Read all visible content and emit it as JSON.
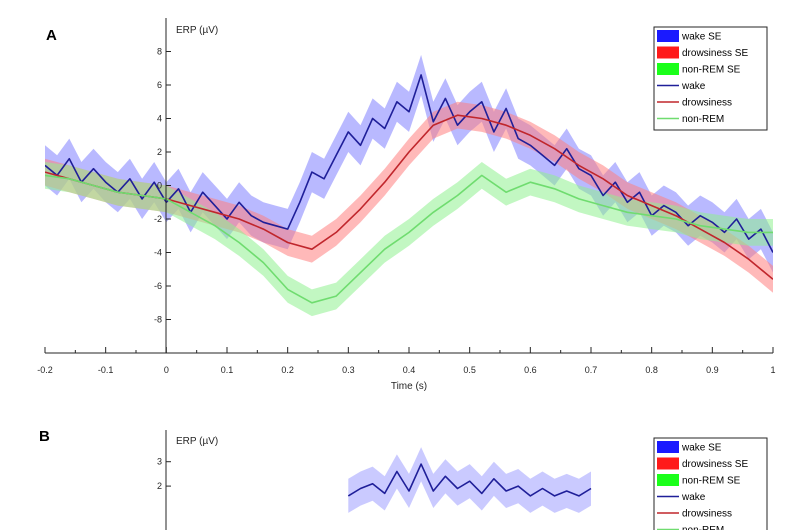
{
  "chart_data": [
    {
      "panel": "A",
      "type": "line",
      "ylabel": "ERP (µV)",
      "xlabel": "Time (s)",
      "xlim": [
        -0.2,
        1.0
      ],
      "ylim": [
        -10,
        10
      ],
      "x_ticks": [
        -0.2,
        -0.1,
        0,
        0.1,
        0.2,
        0.3,
        0.4,
        0.5,
        0.6,
        0.7,
        0.8,
        0.9,
        1
      ],
      "x_tick_labels": [
        "-0.2",
        "-0.1",
        "0",
        "0.1",
        "0.2",
        "0.3",
        "0.4",
        "0.5",
        "0.6",
        "0.7",
        "0.8",
        "0.9",
        "1"
      ],
      "y_ticks": [
        -8,
        -6,
        -4,
        -2,
        0,
        2,
        4,
        6,
        8
      ],
      "y_tick_labels": [
        "-8",
        "-6",
        "-4",
        "-2",
        "0",
        "2",
        "4",
        "6",
        "8"
      ],
      "legend_position": "top-right",
      "legend": [
        {
          "label": "wake SE",
          "kind": "patch",
          "color": "#1a1aff"
        },
        {
          "label": "drowsiness SE",
          "kind": "patch",
          "color": "#ff1a1a"
        },
        {
          "label": "non-REM SE",
          "kind": "patch",
          "color": "#1aff1a"
        },
        {
          "label": "wake",
          "kind": "line",
          "color": "#1f1f99"
        },
        {
          "label": "drowsiness",
          "kind": "line",
          "color": "#c0262c"
        },
        {
          "label": "non-REM",
          "kind": "line",
          "color": "#6fdc6f"
        }
      ],
      "series": [
        {
          "name": "wake",
          "color": "#1f1f99",
          "band_color": "#7f7fff",
          "se": 1.2,
          "x": [
            -0.2,
            -0.18,
            -0.16,
            -0.14,
            -0.12,
            -0.1,
            -0.08,
            -0.06,
            -0.04,
            -0.02,
            0,
            0.02,
            0.04,
            0.06,
            0.08,
            0.1,
            0.12,
            0.14,
            0.16,
            0.18,
            0.2,
            0.22,
            0.24,
            0.26,
            0.28,
            0.3,
            0.32,
            0.34,
            0.36,
            0.38,
            0.4,
            0.42,
            0.44,
            0.46,
            0.48,
            0.5,
            0.52,
            0.54,
            0.56,
            0.58,
            0.6,
            0.62,
            0.64,
            0.66,
            0.68,
            0.7,
            0.72,
            0.74,
            0.76,
            0.78,
            0.8,
            0.82,
            0.84,
            0.86,
            0.88,
            0.9,
            0.92,
            0.94,
            0.96,
            0.98,
            1.0
          ],
          "y": [
            1.2,
            0.6,
            1.6,
            0.2,
            1.0,
            0.2,
            -0.4,
            0.4,
            -0.8,
            0.2,
            -1.0,
            -0.2,
            -1.6,
            -0.4,
            -1.2,
            -2.0,
            -1.0,
            -1.8,
            -2.2,
            -2.4,
            -2.6,
            -1.0,
            0.8,
            0.4,
            1.8,
            3.2,
            2.4,
            4.0,
            3.4,
            5.0,
            4.4,
            6.6,
            3.8,
            5.2,
            3.6,
            4.4,
            5.0,
            3.2,
            4.6,
            2.8,
            2.4,
            1.8,
            1.2,
            2.2,
            1.0,
            0.6,
            -0.6,
            0.2,
            -1.0,
            -0.4,
            -1.8,
            -1.2,
            -1.6,
            -2.4,
            -1.8,
            -2.2,
            -2.8,
            -2.0,
            -3.2,
            -2.6,
            -4.0
          ]
        },
        {
          "name": "drowsiness",
          "color": "#c0262c",
          "band_color": "#ff8080",
          "se": 0.8,
          "x": [
            -0.2,
            -0.16,
            -0.12,
            -0.08,
            -0.04,
            0,
            0.04,
            0.08,
            0.12,
            0.16,
            0.2,
            0.24,
            0.28,
            0.32,
            0.36,
            0.4,
            0.44,
            0.48,
            0.52,
            0.56,
            0.6,
            0.64,
            0.68,
            0.72,
            0.76,
            0.8,
            0.84,
            0.88,
            0.92,
            0.96,
            1.0
          ],
          "y": [
            0.8,
            0.4,
            0.0,
            -0.4,
            -0.6,
            -0.8,
            -1.2,
            -1.6,
            -2.0,
            -2.6,
            -3.4,
            -3.8,
            -2.8,
            -1.4,
            0.2,
            2.0,
            3.6,
            4.2,
            4.0,
            3.6,
            3.0,
            2.2,
            1.2,
            0.4,
            -0.6,
            -1.2,
            -1.8,
            -2.6,
            -3.4,
            -4.4,
            -5.6
          ]
        },
        {
          "name": "non-REM",
          "color": "#6fdc6f",
          "band_color": "#8ff08f",
          "se": 0.8,
          "x": [
            -0.2,
            -0.16,
            -0.12,
            -0.08,
            -0.04,
            0,
            0.04,
            0.08,
            0.12,
            0.16,
            0.2,
            0.24,
            0.28,
            0.32,
            0.36,
            0.4,
            0.44,
            0.48,
            0.52,
            0.56,
            0.6,
            0.64,
            0.68,
            0.72,
            0.76,
            0.8,
            0.84,
            0.88,
            0.92,
            0.96,
            1.0
          ],
          "y": [
            0.6,
            0.4,
            0.0,
            -0.4,
            -0.6,
            -0.8,
            -1.6,
            -2.4,
            -3.4,
            -4.6,
            -6.2,
            -7.0,
            -6.6,
            -5.2,
            -3.8,
            -2.8,
            -1.6,
            -0.6,
            0.6,
            -0.4,
            0.2,
            -0.2,
            -0.8,
            -1.2,
            -1.6,
            -1.8,
            -2.0,
            -2.4,
            -2.6,
            -2.8,
            -2.8
          ]
        }
      ]
    },
    {
      "panel": "B",
      "type": "line",
      "ylabel": "ERP (µV)",
      "xlabel": "",
      "xlim": [
        -0.2,
        1.0
      ],
      "y_visible_range": [
        1.6,
        4.3
      ],
      "y_ticks": [
        2,
        3
      ],
      "y_tick_labels": [
        "2",
        "3"
      ],
      "legend_position": "top-right",
      "legend": [
        {
          "label": "wake SE",
          "kind": "patch",
          "color": "#1a1aff"
        },
        {
          "label": "drowsiness SE",
          "kind": "patch",
          "color": "#ff1a1a"
        },
        {
          "label": "non-REM SE",
          "kind": "patch",
          "color": "#1aff1a"
        },
        {
          "label": "wake",
          "kind": "line",
          "color": "#1f1f99"
        },
        {
          "label": "drowsiness",
          "kind": "line",
          "color": "#c0262c"
        },
        {
          "label": "non-REM",
          "kind": "line",
          "color": "#6fdc6f"
        }
      ],
      "series": [
        {
          "name": "wake",
          "color": "#1f1f99",
          "band_color": "#9f9fff",
          "se": 0.7,
          "x": [
            0.3,
            0.32,
            0.34,
            0.36,
            0.38,
            0.4,
            0.42,
            0.44,
            0.46,
            0.48,
            0.5,
            0.52,
            0.54,
            0.56,
            0.58,
            0.6,
            0.62,
            0.64,
            0.66,
            0.68,
            0.7
          ],
          "y": [
            1.6,
            1.9,
            2.1,
            1.7,
            2.6,
            1.8,
            2.9,
            1.8,
            2.4,
            1.9,
            2.2,
            1.7,
            2.3,
            1.8,
            2.0,
            1.6,
            1.9,
            1.6,
            1.8,
            1.6,
            1.9
          ]
        }
      ]
    }
  ]
}
